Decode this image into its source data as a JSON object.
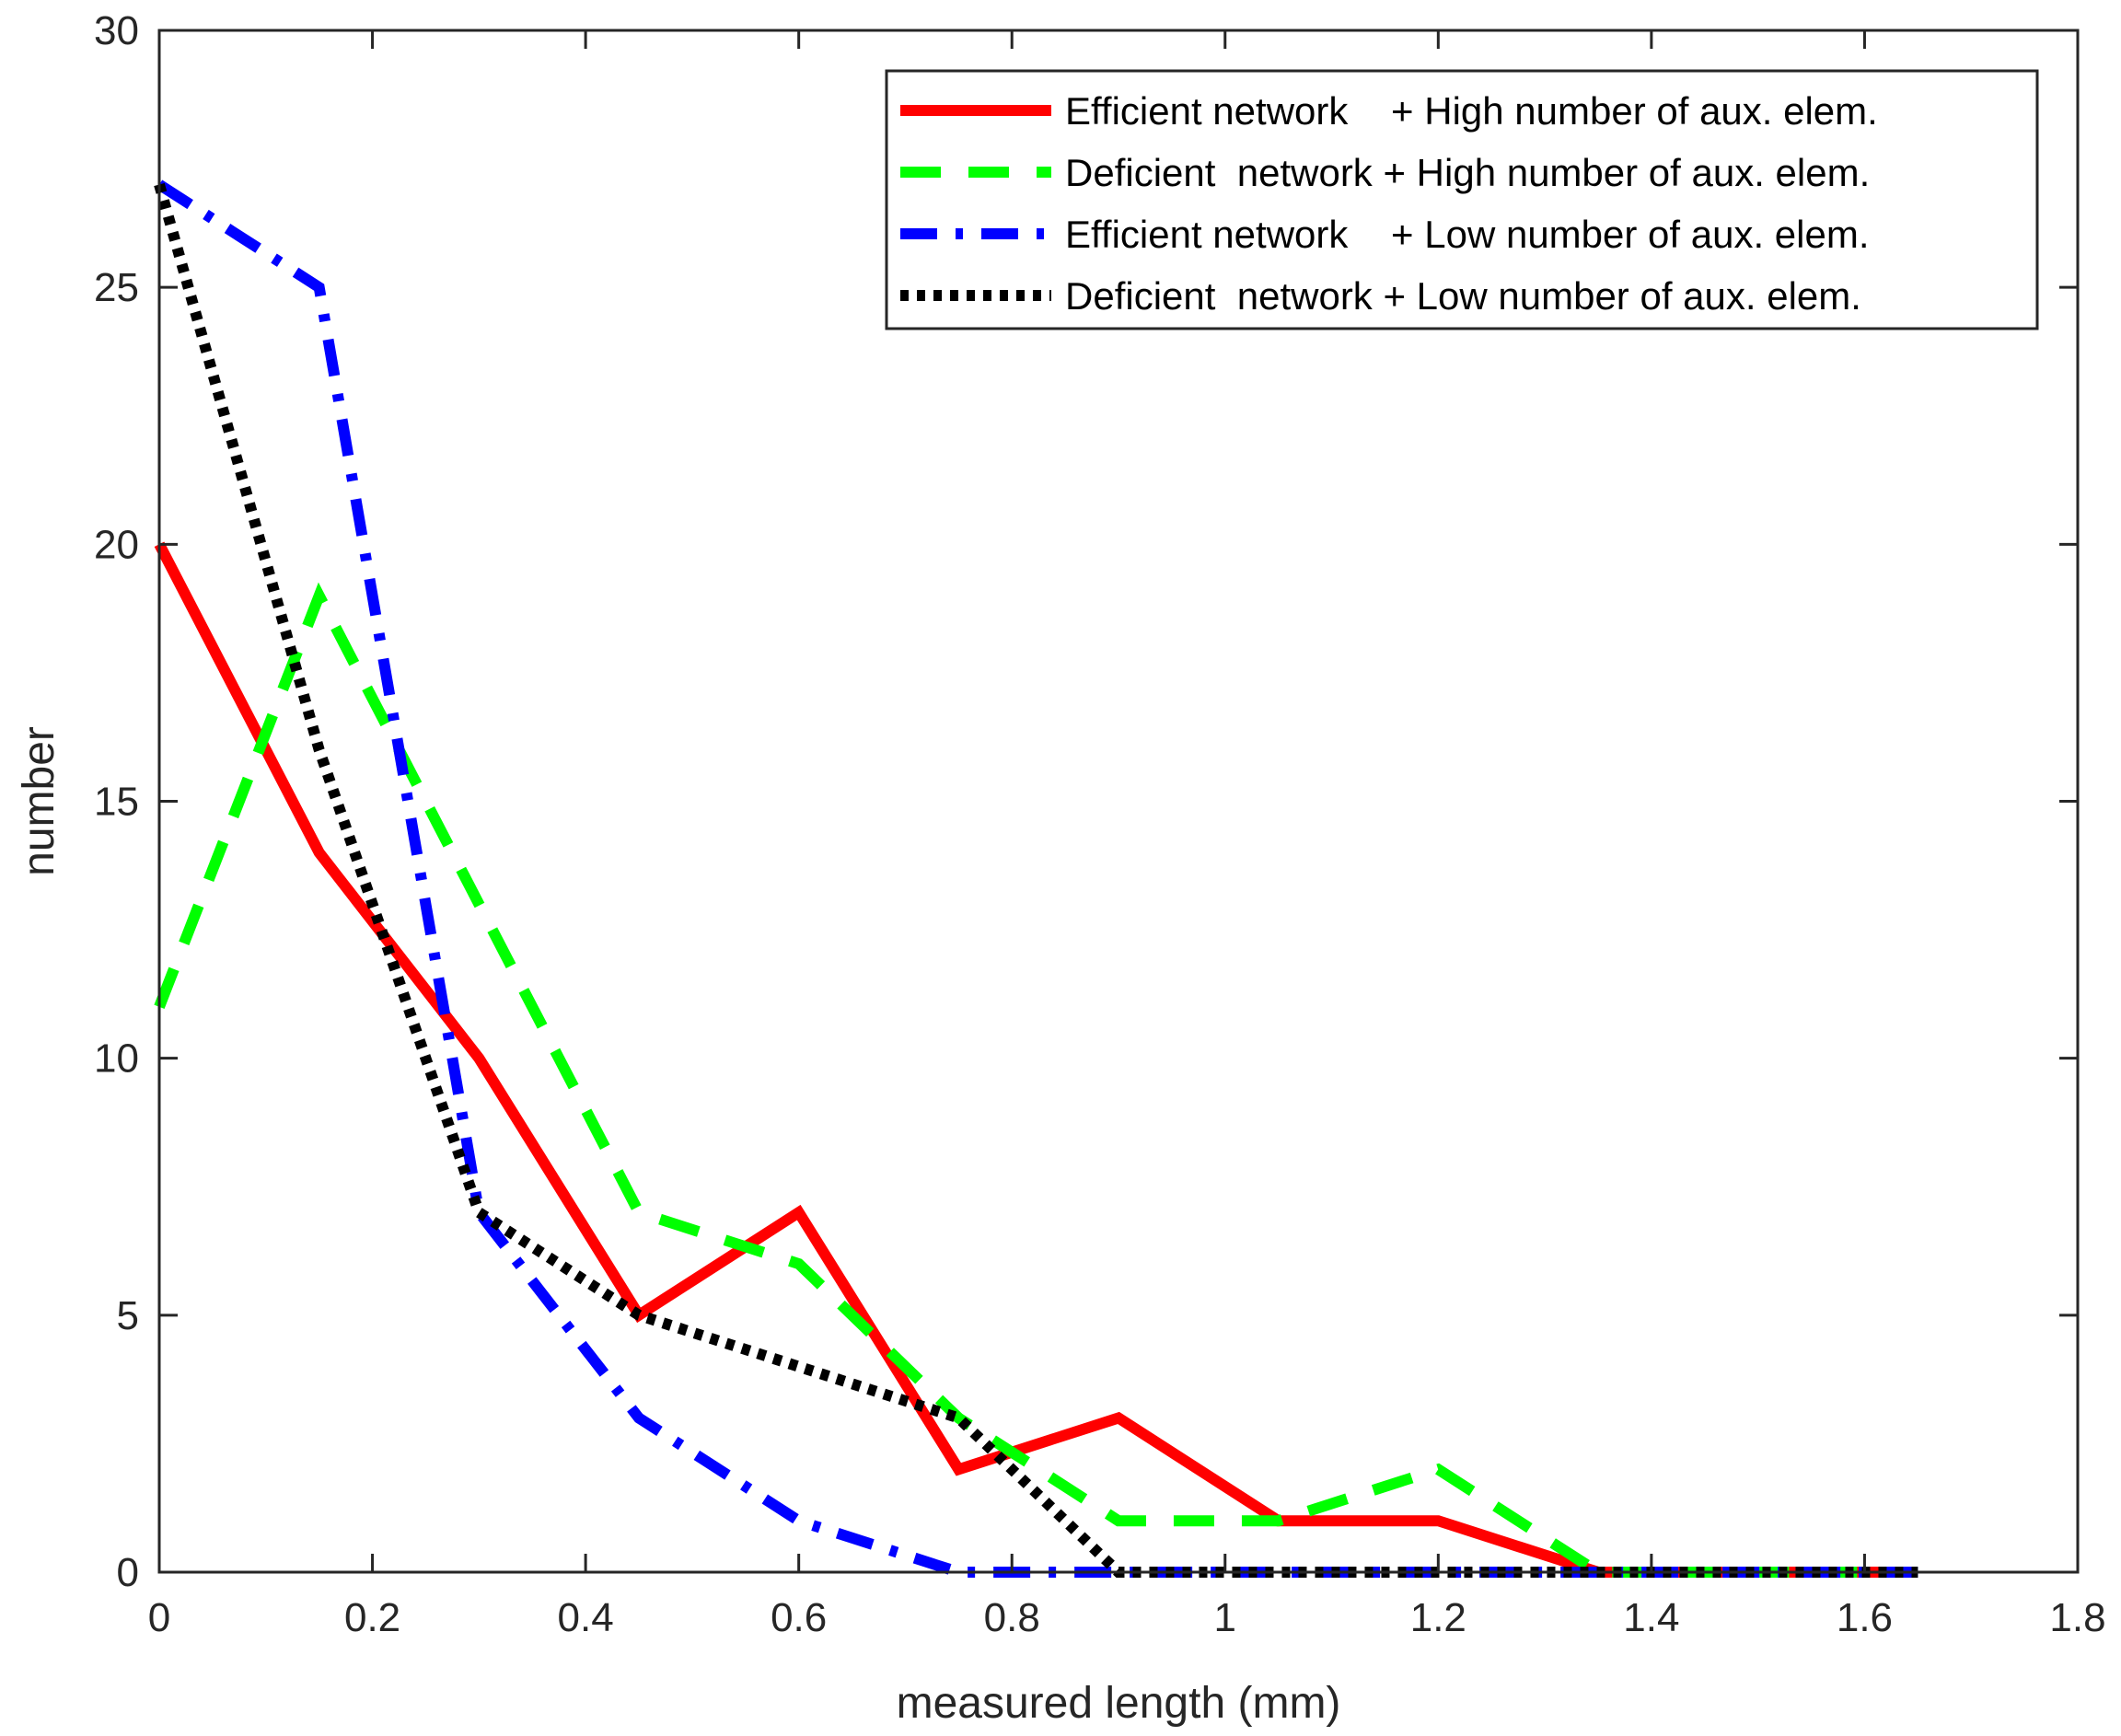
{
  "chart_data": {
    "type": "line",
    "title": "",
    "xlabel": "measured length (mm)",
    "ylabel": "number",
    "xlim": [
      0,
      1.8
    ],
    "ylim": [
      0,
      30
    ],
    "xticks": [
      0,
      0.2,
      0.4,
      0.6,
      0.8,
      1,
      1.2,
      1.4,
      1.6,
      1.8
    ],
    "xtick_labels": [
      "0",
      "0.2",
      "0.4",
      "0.6",
      "0.8",
      "1",
      "1.2",
      "1.4",
      "1.6",
      "1.8"
    ],
    "yticks": [
      0,
      5,
      10,
      15,
      20,
      25,
      30
    ],
    "ytick_labels": [
      "0",
      "5",
      "10",
      "15",
      "20",
      "25",
      "30"
    ],
    "grid": false,
    "legend_position": "top-right",
    "x": [
      0,
      0.15,
      0.3,
      0.45,
      0.6,
      0.75,
      0.9,
      1.05,
      1.2,
      1.35,
      1.5,
      1.65
    ],
    "series": [
      {
        "name": "Efficient network    + High number of aux. elem.",
        "color": "#ff0000",
        "style": "solid",
        "values": [
          20,
          14,
          10,
          5,
          7,
          2,
          3,
          1,
          1,
          0,
          0,
          0
        ]
      },
      {
        "name": "Deficient  network + High number of aux. elem.",
        "color": "#00ff00",
        "style": "dashed",
        "values": [
          11,
          19,
          13,
          7,
          6,
          3,
          1,
          1,
          2,
          0,
          0,
          0
        ]
      },
      {
        "name": "Efficient network    + Low number of aux. elem.",
        "color": "#0000ff",
        "style": "dashdot",
        "values": [
          27,
          25,
          7,
          3,
          1,
          0,
          0,
          0,
          0,
          0,
          0,
          0
        ]
      },
      {
        "name": "Deficient  network + Low number of aux. elem.",
        "color": "#000000",
        "style": "dotted",
        "values": [
          27,
          16,
          7,
          5,
          4,
          3,
          0,
          0,
          0,
          0,
          0,
          0
        ]
      }
    ]
  }
}
